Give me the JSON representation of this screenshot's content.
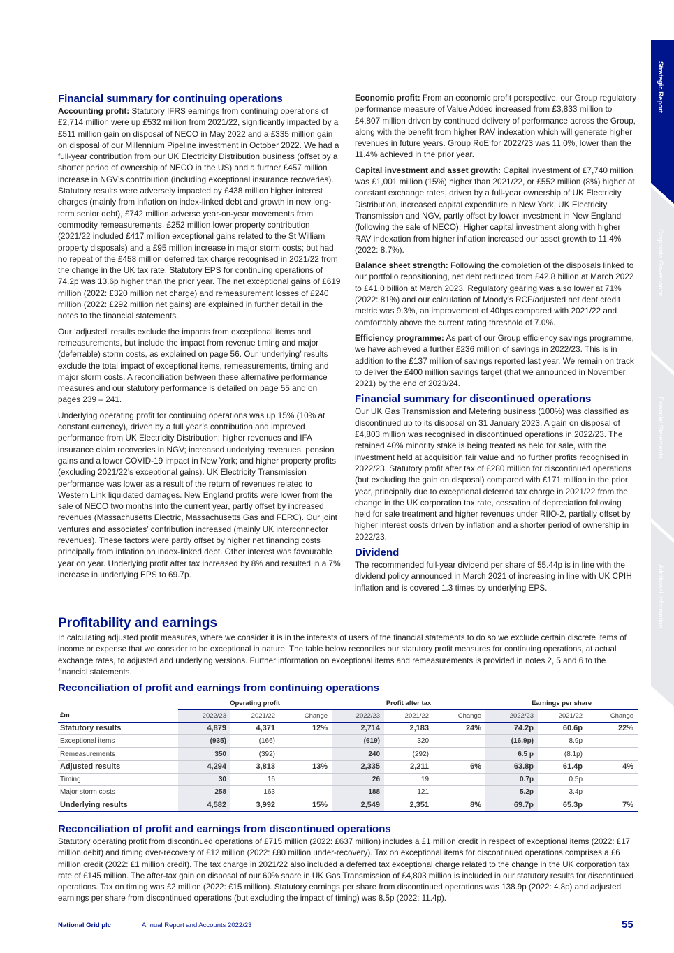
{
  "side_tabs": [
    "Strategic Report",
    "Corporate Governance",
    "Financial Statements",
    "Additional Information"
  ],
  "left_column": [
    {
      "heading": "Financial summary for continuing operations"
    },
    {
      "lead": "Accounting profit:",
      "text": "Statutory IFRS earnings from continuing operations of £2,714 million were up £532 million from 2021/22, significantly impacted by a £511 million gain on disposal of NECO in May 2022 and a £335 million gain on disposal of our Millennium Pipeline investment in October 2022. We had a full-year contribution from our UK Electricity Distribution business (offset by a shorter period of ownership of NECO in the US) and a further £457 million increase in NGV’s contribution (including exceptional insurance recoveries). Statutory results were adversely impacted by £438 million higher interest charges (mainly from inflation on index-linked debt and growth in new long-term senior debt), £742 million adverse year-on-year movements from commodity remeasurements, £252 million lower property contribution (2021/22 included £417 million exceptional gains related to the St William property disposals) and a £95 million increase in major storm costs; but had no repeat of the £458 million deferred tax charge recognised in 2021/22 from the change in the UK tax rate. Statutory EPS for continuing operations of 74.2p was 13.6p higher than the prior year. The net exceptional gains of £619 million (2022: £320 million net charge) and remeasurement losses of £240 million (2022: £292 million net gains) are explained in further detail in the notes to the financial statements."
    },
    {
      "text": "Our ‘adjusted’ results exclude the impacts from exceptional items and remeasurements, but include the impact from revenue timing and major (deferrable) storm costs, as explained on page 56. Our ‘underlying’ results exclude the total impact of exceptional items, remeasurements, timing and major storm costs. A reconciliation between these alternative performance measures and our statutory performance is detailed on page 55 and on pages 239 – 241."
    },
    {
      "text": "Underlying operating profit for continuing operations was up 15% (10% at constant currency), driven by a full year’s contribution and improved performance from UK Electricity Distribution; higher revenues and IFA insurance claim recoveries in NGV; increased underlying revenues, pension gains and a lower COVID-19 impact in New York; and higher property profits (excluding 2021/22’s exceptional gains). UK Electricity Transmission performance was lower as a result of the return of revenues related to Western Link liquidated damages. New England profits were lower from the sale of NECO two months into the current year, partly offset by increased revenues (Massachusetts Electric, Massachusetts Gas and FERC). Our joint ventures and associates’ contribution increased (mainly UK interconnector revenues). These factors were partly offset by higher net financing costs principally from inflation on index-linked debt. Other interest was favourable year on year. Underlying profit after tax increased by 8% and resulted in a 7% increase in underlying EPS to 69.7p."
    }
  ],
  "right_column": [
    {
      "lead": "Economic profit:",
      "text": "From an economic profit perspective, our Group regulatory performance measure of Value Added increased from £3,833 million to £4,807 million driven by continued delivery of performance across the Group, along with the benefit from higher RAV indexation which will generate higher revenues in future years. Group RoE for 2022/23 was 11.0%, lower than the 11.4% achieved in the prior year."
    },
    {
      "lead": "Capital investment and asset growth:",
      "text": "Capital investment of £7,740 million was £1,001 million (15%) higher than 2021/22, or £552 million (8%) higher at constant exchange rates, driven by a full-year ownership of UK Electricity Distribution, increased capital expenditure in New York, UK Electricity Transmission and NGV, partly offset by lower investment in New England (following the sale of NECO). Higher capital investment along with higher RAV indexation from higher inflation increased our asset growth to 11.4% (2022: 8.7%)."
    },
    {
      "lead": "Balance sheet strength:",
      "text": "Following the completion of the disposals linked to our portfolio repositioning, net debt reduced from £42.8 billion at March 2022 to £41.0 billion at March 2023. Regulatory gearing was also lower at 71% (2022: 81%) and our calculation of Moody’s RCF/adjusted net debt credit metric was 9.3%, an improvement of 40bps compared with 2021/22 and comfortably above the current rating threshold of 7.0%."
    },
    {
      "lead": "Efficiency programme:",
      "text": "As part of our Group efficiency savings programme, we have achieved a further £236 million of savings in 2022/23. This is in addition to the £137 million of savings reported last year. We remain on track to deliver the £400 million savings target (that we announced in November 2021) by the end of 2023/24."
    },
    {
      "heading": "Financial summary for discontinued operations"
    },
    {
      "text": "Our UK Gas Transmission and Metering business (100%) was classified as discontinued up to its disposal on 31 January 2023. A gain on disposal of £4,803 million was recognised in discontinued operations in 2022/23. The retained 40% minority stake is being treated as held for sale, with the investment held at acquisition fair value and no further profits recognised in 2022/23. Statutory profit after tax of £280 million for discontinued operations (but excluding the gain on disposal) compared with £171 million in the prior year, principally due to exceptional deferred tax charge in 2021/22 from the change in the UK corporation tax rate, cessation of depreciation following held for sale treatment and higher revenues under RIIO-2, partially offset by higher interest costs driven by inflation and a shorter period of ownership in 2022/23."
    },
    {
      "heading": "Dividend"
    },
    {
      "text": "The recommended full-year dividend per share of 55.44p is in line with the dividend policy announced in March 2021 of increasing in line with UK CPIH inflation and is covered 1.3 times by underlying EPS."
    }
  ],
  "profitability": {
    "heading": "Profitability and earnings",
    "text": "In calculating adjusted profit measures, where we consider it is in the interests of users of the financial statements to do so we exclude certain discrete items of income or expense that we consider to be exceptional in nature. The table below reconciles our statutory profit measures for continuing operations, at actual exchange rates, to adjusted and underlying versions. Further information on exceptional items and remeasurements is provided in notes 2, 5 and 6 to the financial statements."
  },
  "table": {
    "title": "Reconciliation of profit and earnings from continuing operations",
    "groups": [
      "Operating profit",
      "Profit after tax",
      "Earnings per share"
    ],
    "columns": [
      "£m",
      "2022/23",
      "2021/22",
      "Change",
      "2022/23",
      "2021/22",
      "Change",
      "2022/23",
      "2021/22",
      "Change"
    ],
    "rows": [
      [
        "Statutory results",
        "4,879",
        "4,371",
        "12%",
        "2,714",
        "2,183",
        "24%",
        "74.2p",
        "60.6p",
        "22%"
      ],
      [
        "Exceptional items",
        "(935)",
        "(166)",
        null,
        "(619)",
        "320",
        null,
        "(16.9p)",
        "8.9p",
        null
      ],
      [
        "Remeasurements",
        "350",
        "(392)",
        null,
        "240",
        "(292)",
        null,
        "6.5 p",
        "(8.1p)",
        null
      ],
      [
        "Adjusted results",
        "4,294",
        "3,813",
        "13%",
        "2,335",
        "2,211",
        "6%",
        "63.8p",
        "61.4p",
        "4%"
      ],
      [
        "Timing",
        "30",
        "16",
        null,
        "26",
        "19",
        null,
        "0.7p",
        "0.5p",
        null
      ],
      [
        "Major storm costs",
        "258",
        "163",
        null,
        "188",
        "121",
        null,
        "5.2p",
        "3.4p",
        null
      ],
      [
        "Underlying results",
        "4,582",
        "3,992",
        "15%",
        "2,549",
        "2,351",
        "8%",
        "69.7p",
        "65.3p",
        "7%"
      ]
    ]
  },
  "discontinued": {
    "heading": "Reconciliation of profit and earnings from discontinued operations",
    "text": "Statutory operating profit from discontinued operations of £715 million (2022: £637 million) includes a £1 million credit in respect of exceptional items (2022: £17 million debit) and timing over-recovery of £12 million (2022: £80 million under-recovery). Tax on exceptional items for discontinued operations comprises a £6 million credit (2022: £1 million credit). The tax charge in 2021/22 also included a deferred tax exceptional charge related to the change in the UK corporation tax rate of £145 million. The after-tax gain on disposal of our 60% share in UK Gas Transmission of £4,803 million is included in our statutory results for discontinued operations. Tax on timing was £2 million (2022: £15 million). Statutory earnings per share from discontinued operations was 138.9p (2022: 4.8p) and adjusted earnings per share from discontinued operations (but excluding the impact of timing) was 8.5p (2022: 11.4p)."
  },
  "footer": {
    "company": "National Grid plc",
    "report": "Annual Report and Accounts 2022/23",
    "page": "55"
  }
}
